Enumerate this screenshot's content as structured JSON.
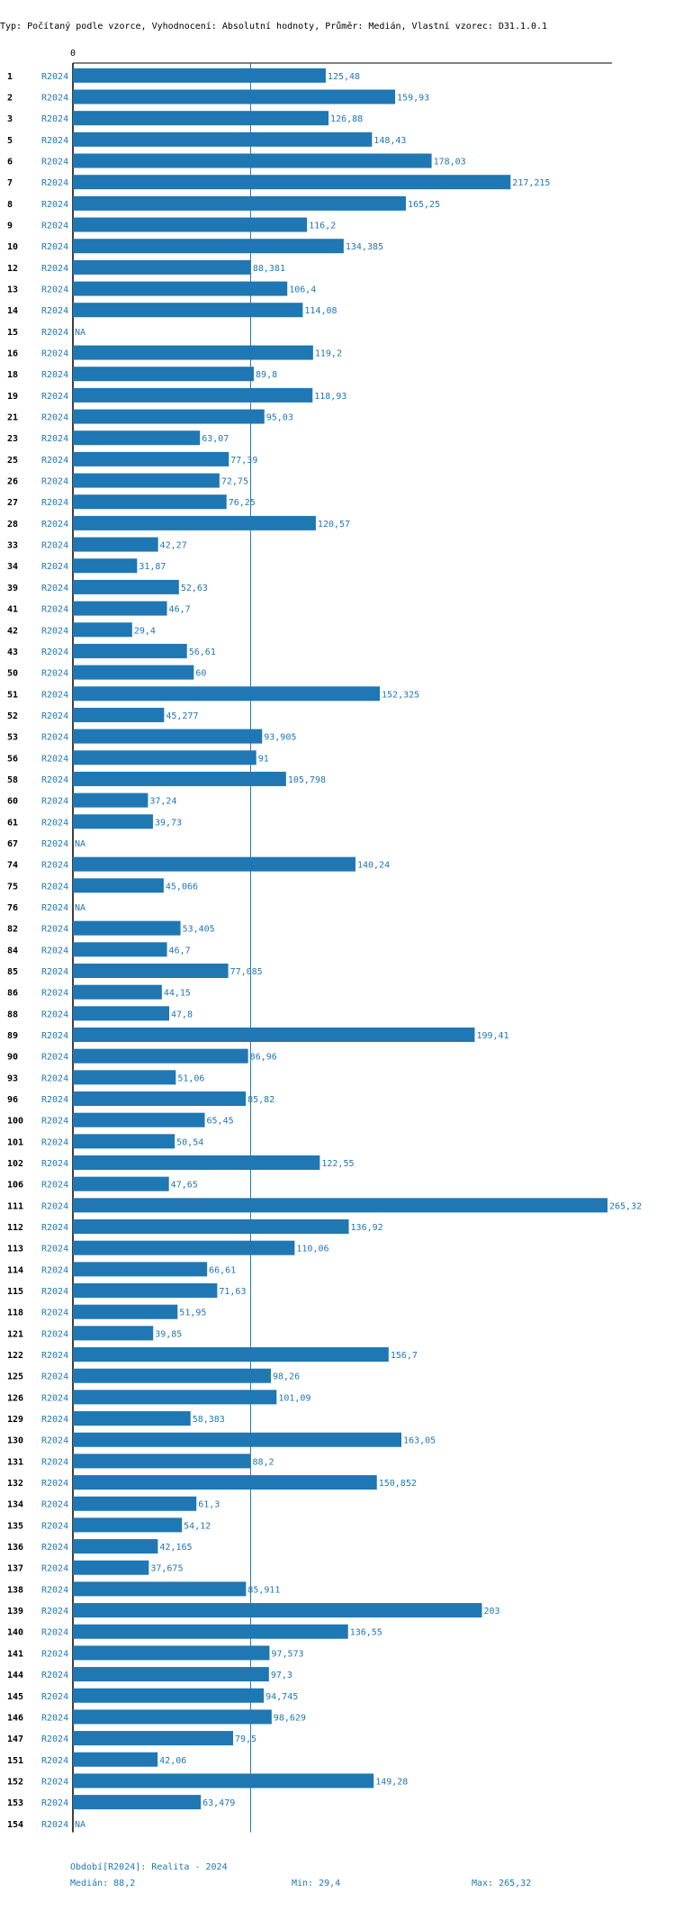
{
  "header": {
    "title": "Typ: Počítaný podle vzorce, Vyhodnocení: Absolutní hodnoty, Průměr: Medián, Vlastní vzorec: D31.1.0.1"
  },
  "chart_data": {
    "type": "bar",
    "orientation": "horizontal",
    "axis_zero_label": "0",
    "period_label": "R2024",
    "na_label": "NA",
    "median_line_value": 88.2,
    "xlim": [
      0,
      265.32
    ],
    "rows": [
      {
        "id": "1",
        "value": 125.48,
        "label": "125,48"
      },
      {
        "id": "2",
        "value": 159.93,
        "label": "159,93"
      },
      {
        "id": "3",
        "value": 126.88,
        "label": "126,88"
      },
      {
        "id": "5",
        "value": 148.43,
        "label": "148,43"
      },
      {
        "id": "6",
        "value": 178.03,
        "label": "178,03"
      },
      {
        "id": "7",
        "value": 217.215,
        "label": "217,215"
      },
      {
        "id": "8",
        "value": 165.25,
        "label": "165,25"
      },
      {
        "id": "9",
        "value": 116.2,
        "label": "116,2"
      },
      {
        "id": "10",
        "value": 134.385,
        "label": "134,385"
      },
      {
        "id": "12",
        "value": 88.381,
        "label": "88,381"
      },
      {
        "id": "13",
        "value": 106.4,
        "label": "106,4"
      },
      {
        "id": "14",
        "value": 114.08,
        "label": "114,08"
      },
      {
        "id": "15",
        "value": null,
        "label": "NA"
      },
      {
        "id": "16",
        "value": 119.2,
        "label": "119,2"
      },
      {
        "id": "18",
        "value": 89.8,
        "label": "89,8"
      },
      {
        "id": "19",
        "value": 118.93,
        "label": "118,93"
      },
      {
        "id": "21",
        "value": 95.03,
        "label": "95,03"
      },
      {
        "id": "23",
        "value": 63.07,
        "label": "63,07"
      },
      {
        "id": "25",
        "value": 77.39,
        "label": "77,39"
      },
      {
        "id": "26",
        "value": 72.75,
        "label": "72,75"
      },
      {
        "id": "27",
        "value": 76.25,
        "label": "76,25"
      },
      {
        "id": "28",
        "value": 120.57,
        "label": "120,57"
      },
      {
        "id": "33",
        "value": 42.27,
        "label": "42,27"
      },
      {
        "id": "34",
        "value": 31.87,
        "label": "31,87"
      },
      {
        "id": "39",
        "value": 52.63,
        "label": "52,63"
      },
      {
        "id": "41",
        "value": 46.7,
        "label": "46,7"
      },
      {
        "id": "42",
        "value": 29.4,
        "label": "29,4"
      },
      {
        "id": "43",
        "value": 56.61,
        "label": "56,61"
      },
      {
        "id": "50",
        "value": 60,
        "label": "60"
      },
      {
        "id": "51",
        "value": 152.325,
        "label": "152,325"
      },
      {
        "id": "52",
        "value": 45.277,
        "label": "45,277"
      },
      {
        "id": "53",
        "value": 93.905,
        "label": "93,905"
      },
      {
        "id": "56",
        "value": 91,
        "label": "91"
      },
      {
        "id": "58",
        "value": 105.798,
        "label": "105,798"
      },
      {
        "id": "60",
        "value": 37.24,
        "label": "37,24"
      },
      {
        "id": "61",
        "value": 39.73,
        "label": "39,73"
      },
      {
        "id": "67",
        "value": null,
        "label": "NA"
      },
      {
        "id": "74",
        "value": 140.24,
        "label": "140,24"
      },
      {
        "id": "75",
        "value": 45.066,
        "label": "45,066"
      },
      {
        "id": "76",
        "value": null,
        "label": "NA"
      },
      {
        "id": "82",
        "value": 53.405,
        "label": "53,405"
      },
      {
        "id": "84",
        "value": 46.7,
        "label": "46,7"
      },
      {
        "id": "85",
        "value": 77.085,
        "label": "77,085"
      },
      {
        "id": "86",
        "value": 44.15,
        "label": "44,15"
      },
      {
        "id": "88",
        "value": 47.8,
        "label": "47,8"
      },
      {
        "id": "89",
        "value": 199.41,
        "label": "199,41"
      },
      {
        "id": "90",
        "value": 86.96,
        "label": "86,96"
      },
      {
        "id": "93",
        "value": 51.06,
        "label": "51,06"
      },
      {
        "id": "96",
        "value": 85.82,
        "label": "85,82"
      },
      {
        "id": "100",
        "value": 65.45,
        "label": "65,45"
      },
      {
        "id": "101",
        "value": 50.54,
        "label": "50,54"
      },
      {
        "id": "102",
        "value": 122.55,
        "label": "122,55"
      },
      {
        "id": "106",
        "value": 47.65,
        "label": "47,65"
      },
      {
        "id": "111",
        "value": 265.32,
        "label": "265,32"
      },
      {
        "id": "112",
        "value": 136.92,
        "label": "136,92"
      },
      {
        "id": "113",
        "value": 110.06,
        "label": "110,06"
      },
      {
        "id": "114",
        "value": 66.61,
        "label": "66,61"
      },
      {
        "id": "115",
        "value": 71.63,
        "label": "71,63"
      },
      {
        "id": "118",
        "value": 51.95,
        "label": "51,95"
      },
      {
        "id": "121",
        "value": 39.85,
        "label": "39,85"
      },
      {
        "id": "122",
        "value": 156.7,
        "label": "156,7"
      },
      {
        "id": "125",
        "value": 98.26,
        "label": "98,26"
      },
      {
        "id": "126",
        "value": 101.09,
        "label": "101,09"
      },
      {
        "id": "129",
        "value": 58.383,
        "label": "58,383"
      },
      {
        "id": "130",
        "value": 163.05,
        "label": "163,05"
      },
      {
        "id": "131",
        "value": 88.2,
        "label": "88,2"
      },
      {
        "id": "132",
        "value": 150.852,
        "label": "150,852"
      },
      {
        "id": "134",
        "value": 61.3,
        "label": "61,3"
      },
      {
        "id": "135",
        "value": 54.12,
        "label": "54,12"
      },
      {
        "id": "136",
        "value": 42.165,
        "label": "42,165"
      },
      {
        "id": "137",
        "value": 37.675,
        "label": "37,675"
      },
      {
        "id": "138",
        "value": 85.911,
        "label": "85,911"
      },
      {
        "id": "139",
        "value": 203,
        "label": "203"
      },
      {
        "id": "140",
        "value": 136.55,
        "label": "136,55"
      },
      {
        "id": "141",
        "value": 97.573,
        "label": "97,573"
      },
      {
        "id": "144",
        "value": 97.3,
        "label": "97,3"
      },
      {
        "id": "145",
        "value": 94.745,
        "label": "94,745"
      },
      {
        "id": "146",
        "value": 98.629,
        "label": "98,629"
      },
      {
        "id": "147",
        "value": 79.5,
        "label": "79,5"
      },
      {
        "id": "151",
        "value": 42.06,
        "label": "42,06"
      },
      {
        "id": "152",
        "value": 149.28,
        "label": "149,28"
      },
      {
        "id": "153",
        "value": 63.479,
        "label": "63,479"
      },
      {
        "id": "154",
        "value": null,
        "label": "NA"
      }
    ]
  },
  "footer": {
    "period": "Období[R2024]: Realita - 2024",
    "median": "Medián: 88,2",
    "min": "Min: 29,4",
    "max": "Max: 265,32"
  },
  "colors": {
    "bar": "#1f77b4",
    "label": "#1f77b4",
    "axis": "#000000",
    "text": "#000000"
  }
}
